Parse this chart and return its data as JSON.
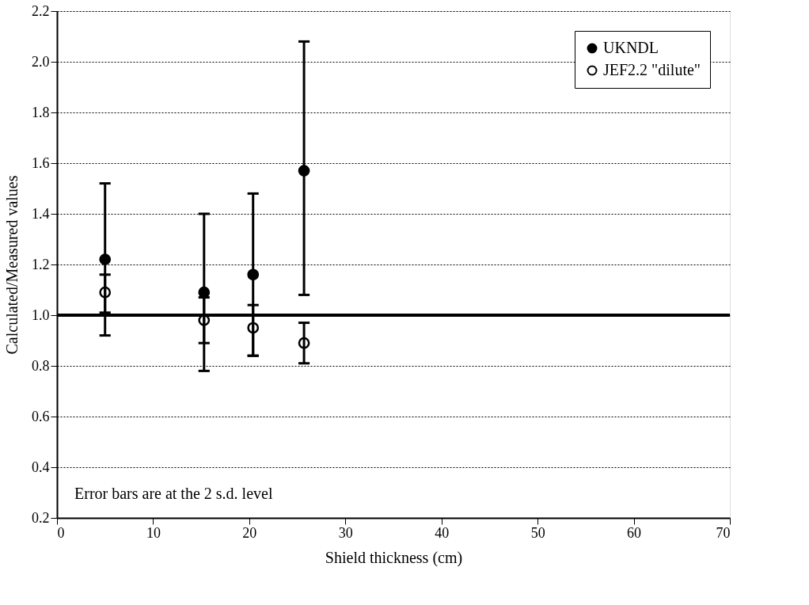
{
  "chart_data": {
    "type": "scatter",
    "xlabel": "Shield thickness  (cm)",
    "ylabel": "Calculated/Measured values",
    "annotations": [
      "Error bars are at the 2 s.d. level"
    ],
    "series": [
      {
        "name": "UKNDL",
        "color": "#000000",
        "x": [
          5,
          15.3,
          20.4,
          25.7
        ],
        "values": [
          1.22,
          1.09,
          1.16,
          1.57
        ],
        "errors": [
          [
            0.92,
            1.52
          ],
          [
            0.78,
            1.4
          ],
          [
            0.84,
            1.48
          ],
          [
            1.08,
            2.08
          ]
        ]
      },
      {
        "name": "JEF2.2 \"dilute\"",
        "color": "#ffffff",
        "x": [
          5,
          15.3,
          20.4,
          25.7
        ],
        "values": [
          1.09,
          0.98,
          0.95,
          0.89
        ],
        "errors": [
          [
            1.01,
            1.16
          ],
          [
            0.89,
            1.07
          ],
          [
            0.84,
            1.04
          ],
          [
            0.81,
            0.97
          ]
        ]
      }
    ],
    "ref_lines": [
      {
        "axis": "y",
        "value": 1.0,
        "color": "#000000",
        "line_style": "solid"
      }
    ],
    "xlim": [
      0,
      70
    ],
    "xticks": [
      0,
      10,
      20,
      30,
      40,
      50,
      60,
      70
    ],
    "ylim": [
      0.2,
      2.2
    ],
    "yticks": [
      0.2,
      0.4,
      0.6,
      0.8,
      {
        "value": 1,
        "label": "1.0"
      },
      1.2,
      1.4,
      1.6,
      1.8,
      {
        "value": 2,
        "label": "2.0"
      },
      2.2
    ],
    "grid": "y",
    "legend": "top right",
    "marker": "circle"
  }
}
